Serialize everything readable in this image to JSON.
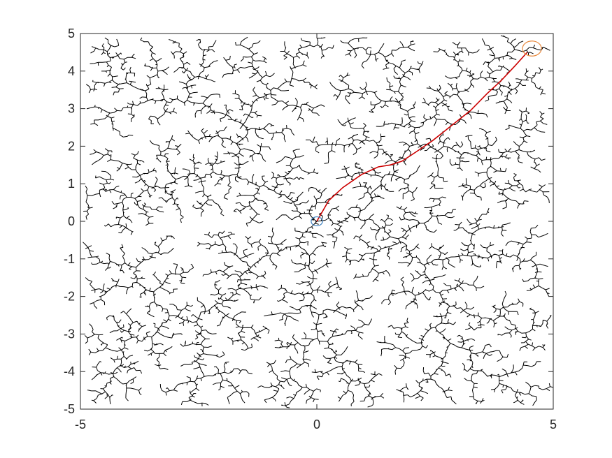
{
  "chart_data": {
    "type": "line",
    "title": "",
    "xlabel": "",
    "ylabel": "",
    "xlim": [
      -5,
      5
    ],
    "ylim": [
      -5,
      5
    ],
    "x_ticks": [
      -5,
      0,
      5
    ],
    "x_tick_labels": [
      "-5",
      "0",
      "5"
    ],
    "y_ticks": [
      -5,
      -4,
      -3,
      -2,
      -1,
      0,
      1,
      2,
      3,
      4,
      5
    ],
    "y_tick_labels": [
      "-5",
      "-4",
      "-3",
      "-2",
      "-1",
      "0",
      "1",
      "2",
      "3",
      "4",
      "5"
    ],
    "grid": false,
    "box": true,
    "series": [
      {
        "role": "tree",
        "color": "#000000",
        "description_visible": "dense branching tree edges covering the whole area, rooted at the origin"
      },
      {
        "role": "path",
        "color": "#cc0000",
        "x": [
          0,
          0.25,
          0.55,
          0.95,
          1.3,
          1.55,
          1.8,
          2.1,
          2.45,
          2.85,
          3.25,
          3.6,
          3.9,
          4.2,
          4.45
        ],
        "y": [
          0,
          0.55,
          0.9,
          1.25,
          1.45,
          1.5,
          1.6,
          1.85,
          2.15,
          2.55,
          2.95,
          3.4,
          3.75,
          4.15,
          4.5
        ]
      },
      {
        "role": "start",
        "color": "#3a7ebf",
        "x": [
          0
        ],
        "y": [
          0
        ],
        "radius": 0.12
      },
      {
        "role": "goal",
        "color": "#e8873a",
        "x": [
          4.55
        ],
        "y": [
          4.6
        ],
        "radius": 0.2
      }
    ]
  }
}
